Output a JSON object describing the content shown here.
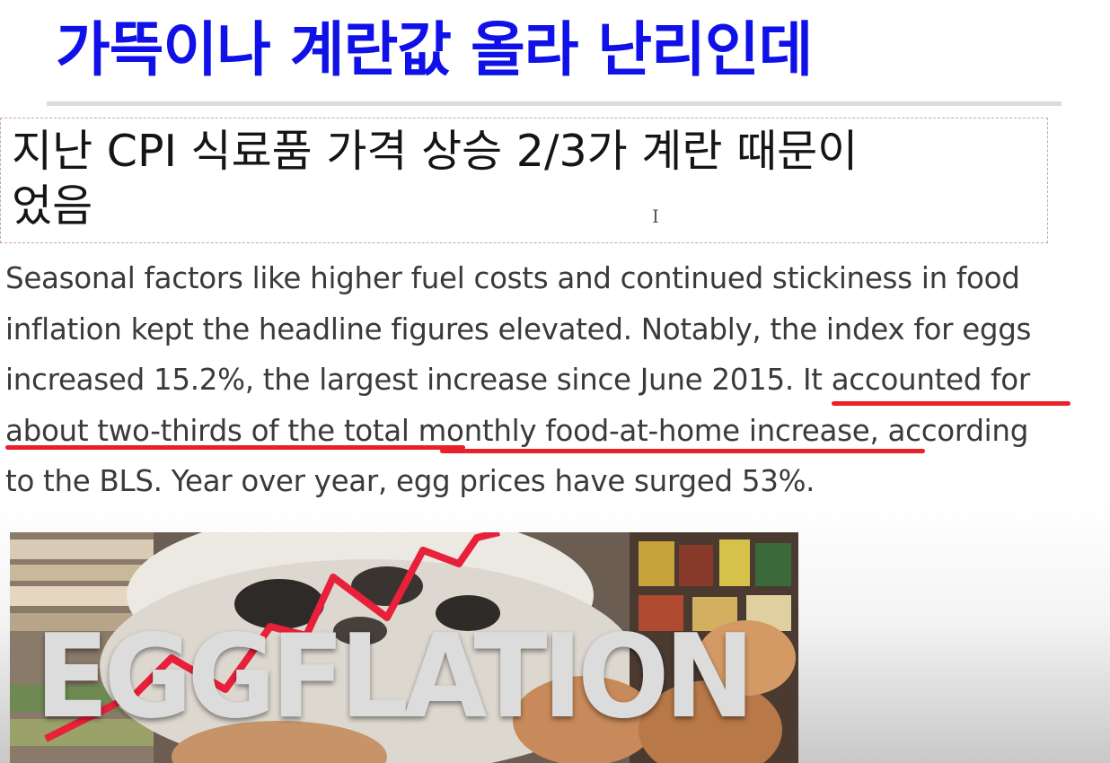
{
  "headline": "가뜩이나 계란값 올라 난리인데",
  "subtitle": {
    "line1": "지난 CPI 식료품 가격 상승 2/3가 계란 때문이",
    "line2": "었음"
  },
  "article": {
    "line1": "Seasonal factors like higher fuel costs and continued stickiness in food",
    "line2": "inflation kept the headline figures elevated. Notably, the index for eggs",
    "line3_a": "increased 15.2%, the largest increase since June 2015. ",
    "line3_b": "It accounted for",
    "line4_a": "about two-thirds of the total monthly food-at-home increase",
    "line4_b": ", according",
    "line5": "to the BLS. Year over year, egg prices have surged 53%."
  },
  "thumbnail": {
    "overlay_text": "EGGFLATION"
  },
  "colors": {
    "headline": "#1010e8",
    "underline": "#e8202a",
    "body_text": "#3a3a3a",
    "trend_line": "#e8203a"
  },
  "icons": {
    "text_cursor": "I-beam-cursor-icon"
  }
}
